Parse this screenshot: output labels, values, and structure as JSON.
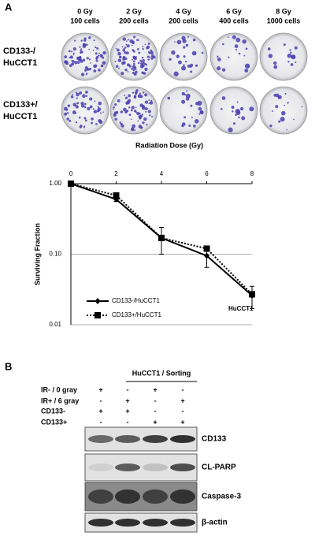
{
  "panel_a": {
    "label": "A",
    "doses": [
      {
        "dose": "0 Gy",
        "cells": "100 cells"
      },
      {
        "dose": "2 Gy",
        "cells": "200 cells"
      },
      {
        "dose": "4 Gy",
        "cells": "200 cells"
      },
      {
        "dose": "6 Gy",
        "cells": "400 cells"
      },
      {
        "dose": "8 Gy",
        "cells": "1000 cells"
      }
    ],
    "rows": [
      {
        "line1": "CD133-/",
        "line2": "HuCCT1"
      },
      {
        "line1": "CD133+/",
        "line2": "HuCCT1"
      }
    ]
  },
  "chart_data": {
    "type": "line",
    "x_title": "Radiation Dose (Gy)",
    "y_title": "Surviving Fraction",
    "x": [
      0,
      2,
      4,
      6,
      8
    ],
    "xlim": [
      0,
      8
    ],
    "xticks": [
      0,
      2,
      4,
      6,
      8
    ],
    "ylim": [
      0.01,
      1
    ],
    "log_y": true,
    "grid": true,
    "yticks": [
      {
        "value": 0.01,
        "label": "0.01"
      },
      {
        "value": 0.1,
        "label": "0.10"
      },
      {
        "value": 1,
        "label": "1.00"
      }
    ],
    "annotation": "HuCCT1",
    "series": [
      {
        "name": "CD133-/HuCCT1",
        "color": "#000000",
        "line_style": "solid",
        "marker": "diamond",
        "values": [
          1.0,
          0.6,
          0.17,
          0.095,
          0.026
        ],
        "errors": [
          0,
          0.04,
          0.07,
          0.03,
          0.009
        ]
      },
      {
        "name": "CD133+/HuCCT1",
        "color": "#000000",
        "line_style": "dotted",
        "marker": "square",
        "values": [
          1.0,
          0.68,
          0.17,
          0.12,
          0.027
        ]
      }
    ]
  },
  "panel_b": {
    "label": "B",
    "group_title": "HuCCT1 / Sorting",
    "conditions": [
      {
        "label": "IR- / 0 gray",
        "signs": [
          "+",
          "-",
          "+",
          "-"
        ]
      },
      {
        "label": "IR+ / 6 gray",
        "signs": [
          "-",
          "+",
          "-",
          "+"
        ]
      },
      {
        "label": "CD133-",
        "signs": [
          "+",
          "+",
          "-",
          "-"
        ]
      },
      {
        "label": "CD133+",
        "signs": [
          "-",
          "-",
          "+",
          "+"
        ]
      }
    ],
    "blots": [
      "CD133",
      "CL-PARP",
      "Caspase-3",
      "β-actin"
    ]
  }
}
